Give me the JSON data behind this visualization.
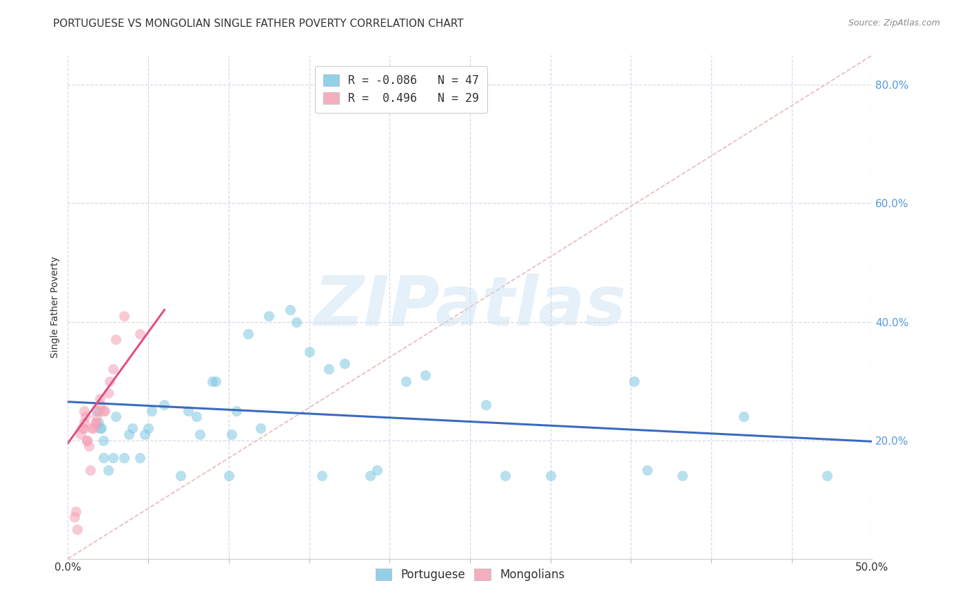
{
  "title": "PORTUGUESE VS MONGOLIAN SINGLE FATHER POVERTY CORRELATION CHART",
  "source": "Source: ZipAtlas.com",
  "ylabel": "Single Father Poverty",
  "xlim": [
    0.0,
    0.5
  ],
  "ylim": [
    0.0,
    0.85
  ],
  "xtick_labels_edge": [
    "0.0%",
    "50.0%"
  ],
  "xtick_vals_edge": [
    0.0,
    0.5
  ],
  "xtick_minor_vals": [
    0.05,
    0.1,
    0.15,
    0.2,
    0.25,
    0.3,
    0.35,
    0.4,
    0.45
  ],
  "ytick_labels": [
    "20.0%",
    "40.0%",
    "60.0%",
    "80.0%"
  ],
  "ytick_vals": [
    0.2,
    0.4,
    0.6,
    0.8
  ],
  "watermark": "ZIPatlas",
  "legend_line1": "R = -0.086   N = 47",
  "legend_line2": "R =  0.496   N = 29",
  "portuguese_x": [
    0.018,
    0.019,
    0.02,
    0.021,
    0.022,
    0.022,
    0.025,
    0.028,
    0.03,
    0.035,
    0.038,
    0.04,
    0.045,
    0.048,
    0.05,
    0.052,
    0.06,
    0.07,
    0.075,
    0.08,
    0.082,
    0.09,
    0.092,
    0.1,
    0.102,
    0.105,
    0.112,
    0.12,
    0.125,
    0.138,
    0.142,
    0.15,
    0.158,
    0.162,
    0.172,
    0.188,
    0.192,
    0.21,
    0.222,
    0.26,
    0.272,
    0.3,
    0.352,
    0.36,
    0.382,
    0.42,
    0.472
  ],
  "portuguese_y": [
    0.25,
    0.23,
    0.22,
    0.22,
    0.2,
    0.17,
    0.15,
    0.17,
    0.24,
    0.17,
    0.21,
    0.22,
    0.17,
    0.21,
    0.22,
    0.25,
    0.26,
    0.14,
    0.25,
    0.24,
    0.21,
    0.3,
    0.3,
    0.14,
    0.21,
    0.25,
    0.38,
    0.22,
    0.41,
    0.42,
    0.4,
    0.35,
    0.14,
    0.32,
    0.33,
    0.14,
    0.15,
    0.3,
    0.31,
    0.26,
    0.14,
    0.14,
    0.3,
    0.15,
    0.14,
    0.24,
    0.14
  ],
  "mongolian_x": [
    0.004,
    0.005,
    0.006,
    0.008,
    0.009,
    0.01,
    0.01,
    0.01,
    0.011,
    0.012,
    0.012,
    0.013,
    0.014,
    0.015,
    0.016,
    0.017,
    0.018,
    0.018,
    0.019,
    0.02,
    0.02,
    0.022,
    0.023,
    0.025,
    0.026,
    0.028,
    0.03,
    0.035,
    0.045
  ],
  "mongolian_y": [
    0.07,
    0.08,
    0.05,
    0.21,
    0.22,
    0.22,
    0.23,
    0.25,
    0.24,
    0.2,
    0.2,
    0.19,
    0.15,
    0.22,
    0.22,
    0.23,
    0.23,
    0.24,
    0.25,
    0.27,
    0.26,
    0.25,
    0.25,
    0.28,
    0.3,
    0.32,
    0.37,
    0.41,
    0.38
  ],
  "blue_line_x": [
    0.0,
    0.5
  ],
  "blue_line_y": [
    0.265,
    0.198
  ],
  "pink_line_x": [
    0.0,
    0.06
  ],
  "pink_line_y": [
    0.195,
    0.42
  ],
  "diagonal_line_x": [
    0.0,
    0.5
  ],
  "diagonal_line_y": [
    0.0,
    0.85
  ],
  "portuguese_color": "#7ec8e3",
  "mongolian_color": "#f4a0b5",
  "blue_line_color": "#3a6abf",
  "pink_line_color": "#e05080",
  "diagonal_color": "#e8b8b8",
  "background_color": "#ffffff",
  "grid_color": "#d8d8e8",
  "title_fontsize": 11,
  "axis_label_fontsize": 10,
  "tick_fontsize": 11,
  "source_fontsize": 9,
  "watermark_fontsize": 72,
  "scatter_size": 120,
  "scatter_alpha": 0.55
}
